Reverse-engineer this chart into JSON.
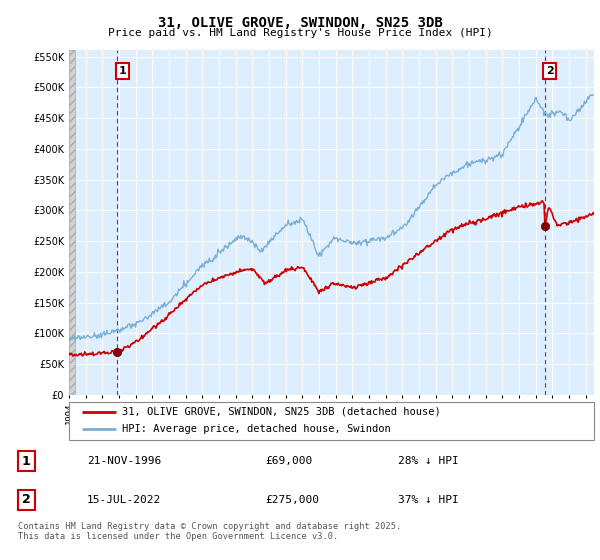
{
  "title": "31, OLIVE GROVE, SWINDON, SN25 3DB",
  "subtitle": "Price paid vs. HM Land Registry's House Price Index (HPI)",
  "ylim": [
    0,
    560000
  ],
  "yticks": [
    0,
    50000,
    100000,
    150000,
    200000,
    250000,
    300000,
    350000,
    400000,
    450000,
    500000,
    550000
  ],
  "legend_line1": "31, OLIVE GROVE, SWINDON, SN25 3DB (detached house)",
  "legend_line2": "HPI: Average price, detached house, Swindon",
  "annotation1_date": "21-NOV-1996",
  "annotation1_price": "£69,000",
  "annotation1_hpi": "28% ↓ HPI",
  "annotation2_date": "15-JUL-2022",
  "annotation2_price": "£275,000",
  "annotation2_hpi": "37% ↓ HPI",
  "footer": "Contains HM Land Registry data © Crown copyright and database right 2025.\nThis data is licensed under the Open Government Licence v3.0.",
  "sale1_year": 1996.9,
  "sale1_price": 69000,
  "sale2_year": 2022.54,
  "sale2_price": 275000,
  "line_color_red": "#cc0000",
  "line_color_blue": "#7aafd4",
  "marker_color_red": "#880000",
  "chart_bg": "#ddeeff",
  "hatch_bg": "#d0d0d0",
  "grid_color": "#ffffff",
  "annotation_box_color": "#cc0000",
  "title_fontsize": 10,
  "subtitle_fontsize": 8
}
